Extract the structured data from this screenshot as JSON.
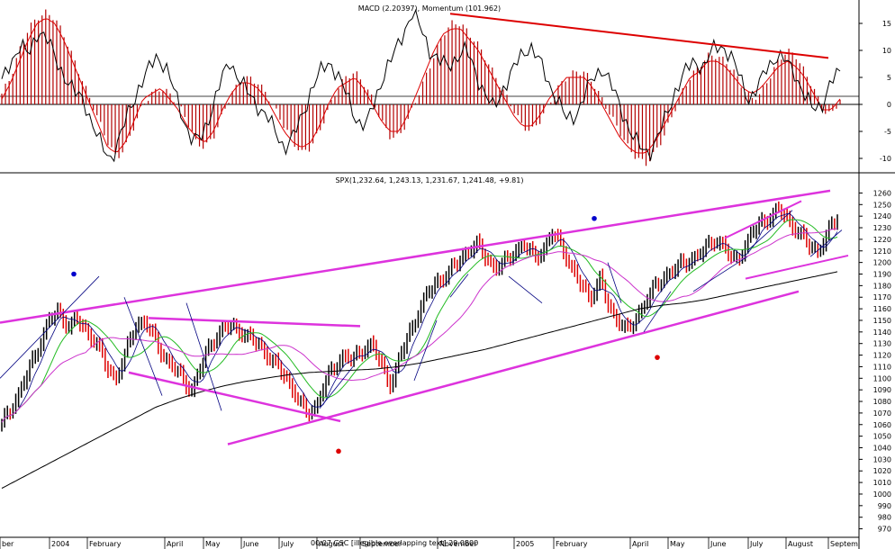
{
  "chart_data": [
    {
      "type": "line",
      "title": "MACD (2.20397), Momentum (101.962)",
      "yticks": [
        15,
        10,
        5,
        0,
        -5,
        -10
      ],
      "ylim": [
        -12,
        18
      ],
      "zero_line": 0,
      "series": [
        {
          "name": "MACD histogram",
          "style": "bar",
          "values": [
            2,
            5,
            10,
            14,
            16,
            17,
            16,
            13,
            9,
            5,
            1,
            -3,
            -7,
            -10,
            -8,
            -4,
            0,
            2,
            3,
            2,
            0,
            -3,
            -7,
            -8,
            -6,
            -2,
            2,
            4,
            5,
            4,
            2,
            -1,
            -4,
            -7,
            -9,
            -8,
            -5,
            -1,
            3,
            5,
            6,
            4,
            1,
            -3,
            -6,
            -6,
            -3,
            1,
            5,
            9,
            13,
            15,
            15,
            13,
            11,
            8,
            5,
            2,
            -1,
            -4,
            -5,
            -3,
            0,
            3,
            5,
            6,
            6,
            4,
            1,
            -2,
            -5,
            -8,
            -10,
            -11,
            -9,
            -6,
            -2,
            2,
            5,
            7,
            9,
            9,
            8,
            6,
            3,
            1,
            2,
            5,
            8,
            10,
            9,
            6,
            3,
            -1,
            -2,
            1
          ]
        },
        {
          "name": "Momentum",
          "style": "line",
          "values": [
            4,
            8,
            11,
            9,
            14,
            12,
            8,
            5,
            2,
            1,
            -4,
            -8,
            -10,
            -6,
            -1,
            3,
            6,
            9,
            7,
            2,
            -3,
            -7,
            -6,
            -1,
            4,
            8,
            5,
            2,
            0,
            -2,
            -5,
            -8,
            -6,
            -2,
            3,
            6,
            8,
            5,
            1,
            -3,
            -4,
            1,
            6,
            9,
            13,
            17,
            14,
            10,
            8,
            7,
            9,
            10,
            6,
            2,
            -1,
            3,
            6,
            9,
            11,
            8,
            4,
            1,
            -3,
            -2,
            2,
            5,
            7,
            3,
            -1,
            -5,
            -8,
            -9,
            -6,
            -2,
            3,
            6,
            8,
            7,
            10,
            11,
            9,
            5,
            1,
            3,
            7,
            9,
            8,
            6,
            2,
            -1,
            0,
            4,
            6
          ],
          "sampled": true
        },
        {
          "name": "Signal",
          "style": "line",
          "values": [
            1,
            4,
            8,
            12,
            15,
            16,
            15,
            12,
            8,
            4,
            0,
            -4,
            -8,
            -9,
            -7,
            -3,
            1,
            2,
            3,
            1,
            -1,
            -4,
            -6,
            -7,
            -5,
            -1,
            2,
            4,
            4,
            3,
            1,
            -2,
            -5,
            -7,
            -8,
            -7,
            -4,
            0,
            3,
            4,
            5,
            3,
            0,
            -3,
            -5,
            -5,
            -2,
            2,
            6,
            10,
            13,
            14,
            14,
            12,
            10,
            7,
            4,
            1,
            -2,
            -4,
            -4,
            -2,
            1,
            3,
            5,
            5,
            5,
            3,
            0,
            -3,
            -6,
            -8,
            -9,
            -9,
            -7,
            -4,
            -1,
            2,
            5,
            6,
            8,
            8,
            7,
            5,
            3,
            2,
            3,
            5,
            7,
            8,
            7,
            5,
            2,
            -1,
            -1,
            1
          ],
          "sampled": true
        }
      ],
      "annotations": [
        "resistance trendline on histogram peaks",
        "horizontal reference line near 1.5"
      ]
    },
    {
      "type": "line",
      "title": "SPX(1,232.64, 1,243.13, 1,231.67, 1,241.48, +9.81)",
      "yticks": [
        1260,
        1250,
        1240,
        1230,
        1220,
        1210,
        1200,
        1190,
        1180,
        1170,
        1160,
        1150,
        1140,
        1130,
        1120,
        1110,
        1100,
        1090,
        1080,
        1070,
        1060,
        1050,
        1040,
        1030,
        1020,
        1010,
        1000,
        990,
        980,
        970
      ],
      "ylim": [
        965,
        1265
      ],
      "x_labels": [
        "ber",
        "2004",
        "February",
        "April",
        "May",
        "June",
        "July",
        "August",
        "September",
        "November",
        "2005",
        "February",
        "April",
        "May",
        "June",
        "July",
        "August",
        "Septem"
      ],
      "overlapping_footer_text": "00 07 GSC  [illegible overlapping text]  29 0800",
      "series": [
        {
          "name": "SPX close",
          "style": "ohlc-bars",
          "values": [
            1060,
            1075,
            1090,
            1110,
            1130,
            1150,
            1158,
            1145,
            1150,
            1140,
            1130,
            1110,
            1100,
            1120,
            1145,
            1150,
            1135,
            1120,
            1110,
            1100,
            1090,
            1110,
            1130,
            1140,
            1145,
            1142,
            1135,
            1130,
            1120,
            1110,
            1100,
            1085,
            1070,
            1075,
            1095,
            1110,
            1120,
            1115,
            1125,
            1130,
            1110,
            1095,
            1120,
            1140,
            1160,
            1175,
            1185,
            1190,
            1200,
            1210,
            1215,
            1205,
            1195,
            1200,
            1210,
            1215,
            1205,
            1210,
            1225,
            1215,
            1195,
            1180,
            1170,
            1185,
            1160,
            1150,
            1140,
            1155,
            1170,
            1180,
            1190,
            1195,
            1200,
            1205,
            1210,
            1220,
            1215,
            1200,
            1210,
            1225,
            1235,
            1240,
            1245,
            1235,
            1225,
            1215,
            1210,
            1225,
            1240
          ],
          "sampled": true
        },
        {
          "name": "Moving average (long, black)",
          "style": "line",
          "values": [
            1005,
            1015,
            1025,
            1035,
            1045,
            1055,
            1065,
            1075,
            1082,
            1088,
            1093,
            1097,
            1100,
            1103,
            1105,
            1106,
            1107,
            1108,
            1110,
            1113,
            1117,
            1121,
            1125,
            1130,
            1135,
            1140,
            1145,
            1150,
            1155,
            1160,
            1163,
            1165,
            1168,
            1172,
            1176,
            1180,
            1184,
            1188,
            1192
          ],
          "sampled": true
        },
        {
          "name": "Moving average (green)",
          "style": "line",
          "sampled": true
        },
        {
          "name": "Moving average (magenta)",
          "style": "line",
          "sampled": true
        }
      ],
      "annotations": [
        "magenta channel trendlines",
        "blue and red marker dots",
        "blue short trendlines"
      ],
      "markers": [
        {
          "color": "#0000cc",
          "date": "Feb 2004",
          "y": 1190
        },
        {
          "color": "#0000cc",
          "date": "Mar 2005",
          "y": 1238
        },
        {
          "color": "#dd0000",
          "date": "Aug 2004",
          "y": 1037
        },
        {
          "color": "#dd0000",
          "date": "Apr 2005",
          "y": 1118
        }
      ]
    }
  ],
  "colors": {
    "histogram": "#b30000",
    "signal": "#dd0000",
    "momentum": "#000000",
    "trend_red": "#dd0000",
    "trend_magenta": "#dd33dd",
    "ma_green": "#22bb22",
    "ma_pink": "#cc33cc",
    "ma_black": "#000000",
    "dot_blue": "#0000cc",
    "dot_red": "#dd0000"
  }
}
